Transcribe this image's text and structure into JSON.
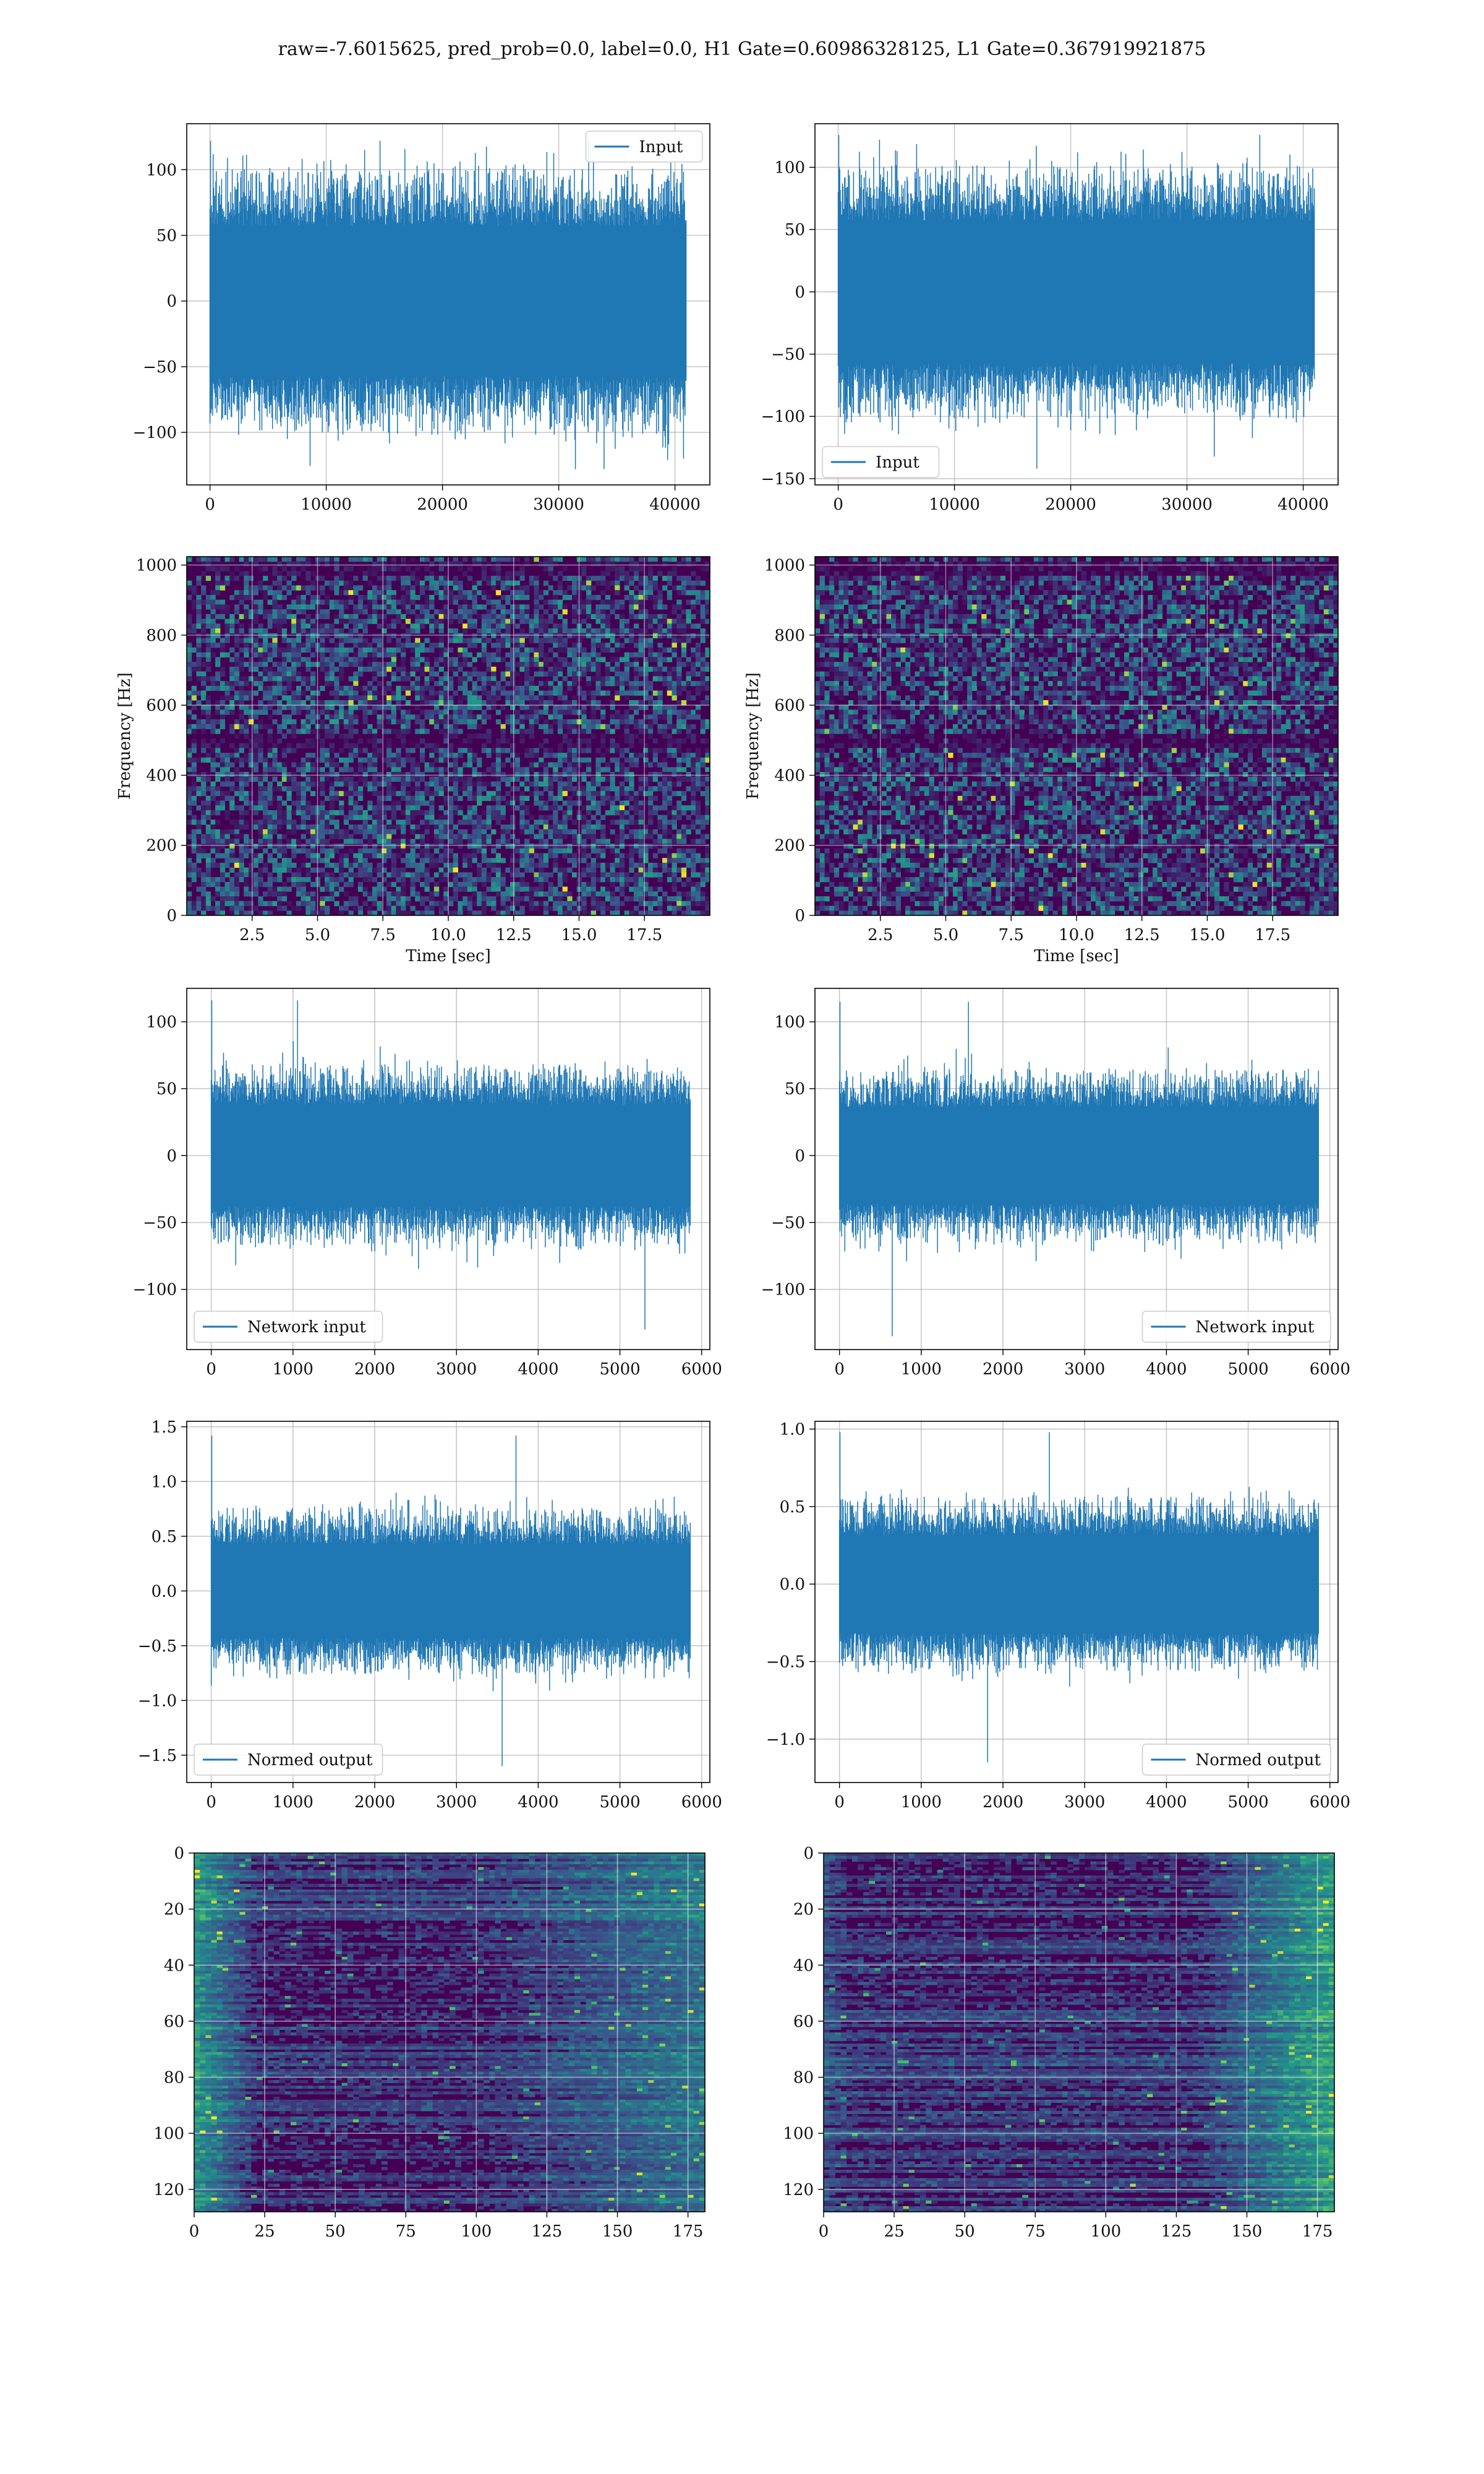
{
  "figure": {
    "title": "raw=-7.6015625, pred_prob=0.0, label=0.0, H1 Gate=0.60986328125, L1 Gate=0.367919921875"
  },
  "colors": {
    "signal": "#1f77b4",
    "grid": "#b0b0b0",
    "viridis": [
      "#440154",
      "#3b528b",
      "#21918c",
      "#5ec962",
      "#fde725"
    ]
  },
  "chart_data": [
    {
      "id": "row1-left",
      "type": "line",
      "title": "",
      "xlabel": "",
      "ylabel": "",
      "xlim": [
        -2000,
        43000
      ],
      "ylim": [
        -140,
        135
      ],
      "xticks": [
        0,
        10000,
        20000,
        30000,
        40000
      ],
      "yticks": [
        -100,
        -50,
        0,
        50,
        100
      ],
      "x_range": [
        0,
        40960
      ],
      "series": [
        {
          "name": "Input",
          "x_start": 0,
          "x_end": 40960,
          "body_amplitude": 60,
          "peak_max": 122,
          "peak_min": -128
        }
      ],
      "legend": {
        "labels": [
          "Input"
        ],
        "position": "upper right"
      },
      "grid": true
    },
    {
      "id": "row1-right",
      "type": "line",
      "title": "",
      "xlabel": "",
      "ylabel": "",
      "xlim": [
        -2000,
        43000
      ],
      "ylim": [
        -155,
        135
      ],
      "xticks": [
        0,
        10000,
        20000,
        30000,
        40000
      ],
      "yticks": [
        -150,
        -100,
        -50,
        0,
        50,
        100
      ],
      "series": [
        {
          "name": "Input",
          "x_start": 0,
          "x_end": 40960,
          "body_amplitude": 60,
          "peak_max": 126,
          "peak_min": -142
        }
      ],
      "legend": {
        "labels": [
          "Input"
        ],
        "position": "lower left"
      },
      "grid": true
    },
    {
      "id": "row2-left",
      "type": "heatmap",
      "title": "",
      "xlabel": "Time [sec]",
      "ylabel": "Frequency [Hz]",
      "xlim": [
        0,
        20
      ],
      "ylim": [
        0,
        1024
      ],
      "xticks": [
        2.5,
        5.0,
        7.5,
        10.0,
        12.5,
        15.0,
        17.5
      ],
      "xtick_labels": [
        "2.5",
        "5.0",
        "7.5",
        "10.0",
        "12.5",
        "15.0",
        "17.5"
      ],
      "yticks": [
        0,
        200,
        400,
        600,
        800,
        1000
      ],
      "dark_bands_hz": [
        500,
        1000
      ],
      "grid": true
    },
    {
      "id": "row2-right",
      "type": "heatmap",
      "title": "",
      "xlabel": "Time [sec]",
      "ylabel": "Frequency [Hz]",
      "xlim": [
        0,
        20
      ],
      "ylim": [
        0,
        1024
      ],
      "xticks": [
        2.5,
        5.0,
        7.5,
        10.0,
        12.5,
        15.0,
        17.5
      ],
      "xtick_labels": [
        "2.5",
        "5.0",
        "7.5",
        "10.0",
        "12.5",
        "15.0",
        "17.5"
      ],
      "yticks": [
        0,
        200,
        400,
        600,
        800,
        1000
      ],
      "dark_bands_hz": [
        500,
        1000
      ],
      "grid": true
    },
    {
      "id": "row3-left",
      "type": "line",
      "title": "",
      "xlabel": "",
      "ylabel": "",
      "xlim": [
        -300,
        6100
      ],
      "ylim": [
        -145,
        125
      ],
      "xticks": [
        0,
        1000,
        2000,
        3000,
        4000,
        5000,
        6000
      ],
      "yticks": [
        -100,
        -50,
        0,
        50,
        100
      ],
      "series": [
        {
          "name": "Network input",
          "x_start": 0,
          "x_end": 5860,
          "body_amplitude": 40,
          "peak_max": 116,
          "peak_min": -130
        }
      ],
      "legend": {
        "labels": [
          "Network input"
        ],
        "position": "lower left"
      },
      "grid": true
    },
    {
      "id": "row3-right",
      "type": "line",
      "title": "",
      "xlabel": "",
      "ylabel": "",
      "xlim": [
        -300,
        6100
      ],
      "ylim": [
        -145,
        125
      ],
      "xticks": [
        0,
        1000,
        2000,
        3000,
        4000,
        5000,
        6000
      ],
      "yticks": [
        -100,
        -50,
        0,
        50,
        100
      ],
      "series": [
        {
          "name": "Network input",
          "x_start": 0,
          "x_end": 5860,
          "body_amplitude": 38,
          "peak_max": 115,
          "peak_min": -135
        }
      ],
      "legend": {
        "labels": [
          "Network input"
        ],
        "position": "lower right"
      },
      "grid": true
    },
    {
      "id": "row4-left",
      "type": "line",
      "title": "",
      "xlabel": "",
      "ylabel": "",
      "xlim": [
        -300,
        6100
      ],
      "ylim": [
        -1.75,
        1.55
      ],
      "xticks": [
        0,
        1000,
        2000,
        3000,
        4000,
        5000,
        6000
      ],
      "yticks": [
        -1.5,
        -1.0,
        -0.5,
        0.0,
        0.5,
        1.0,
        1.5
      ],
      "ytick_labels": [
        "−1.5",
        "−1.0",
        "−0.5",
        "0.0",
        "0.5",
        "1.0",
        "1.5"
      ],
      "series": [
        {
          "name": "Normed output",
          "x_start": 0,
          "x_end": 5860,
          "body_amplitude": 0.45,
          "peak_max": 1.42,
          "peak_min": -1.6
        }
      ],
      "legend": {
        "labels": [
          "Normed output"
        ],
        "position": "lower left"
      },
      "grid": true
    },
    {
      "id": "row4-right",
      "type": "line",
      "title": "",
      "xlabel": "",
      "ylabel": "",
      "xlim": [
        -300,
        6100
      ],
      "ylim": [
        -1.28,
        1.05
      ],
      "xticks": [
        0,
        1000,
        2000,
        3000,
        4000,
        5000,
        6000
      ],
      "yticks": [
        -1.0,
        -0.5,
        0.0,
        0.5,
        1.0
      ],
      "ytick_labels": [
        "−1.0",
        "−0.5",
        "0.0",
        "0.5",
        "1.0"
      ],
      "series": [
        {
          "name": "Normed output",
          "x_start": 0,
          "x_end": 5860,
          "body_amplitude": 0.33,
          "peak_max": 0.98,
          "peak_min": -1.15
        }
      ],
      "legend": {
        "labels": [
          "Normed output"
        ],
        "position": "lower right"
      },
      "grid": true
    },
    {
      "id": "row5-left",
      "type": "heatmap",
      "title": "",
      "xlabel": "",
      "ylabel": "",
      "xlim": [
        0,
        181
      ],
      "ylim": [
        0,
        128
      ],
      "y_inverted": true,
      "xticks": [
        0,
        25,
        50,
        75,
        100,
        125,
        150,
        175
      ],
      "yticks": [
        0,
        20,
        40,
        60,
        80,
        100,
        120
      ],
      "grid": true
    },
    {
      "id": "row5-right",
      "type": "heatmap",
      "title": "",
      "xlabel": "",
      "ylabel": "",
      "xlim": [
        0,
        181
      ],
      "ylim": [
        0,
        128
      ],
      "y_inverted": true,
      "xticks": [
        0,
        25,
        50,
        75,
        100,
        125,
        150,
        175
      ],
      "yticks": [
        0,
        20,
        40,
        60,
        80,
        100,
        120
      ],
      "grid": true
    }
  ]
}
